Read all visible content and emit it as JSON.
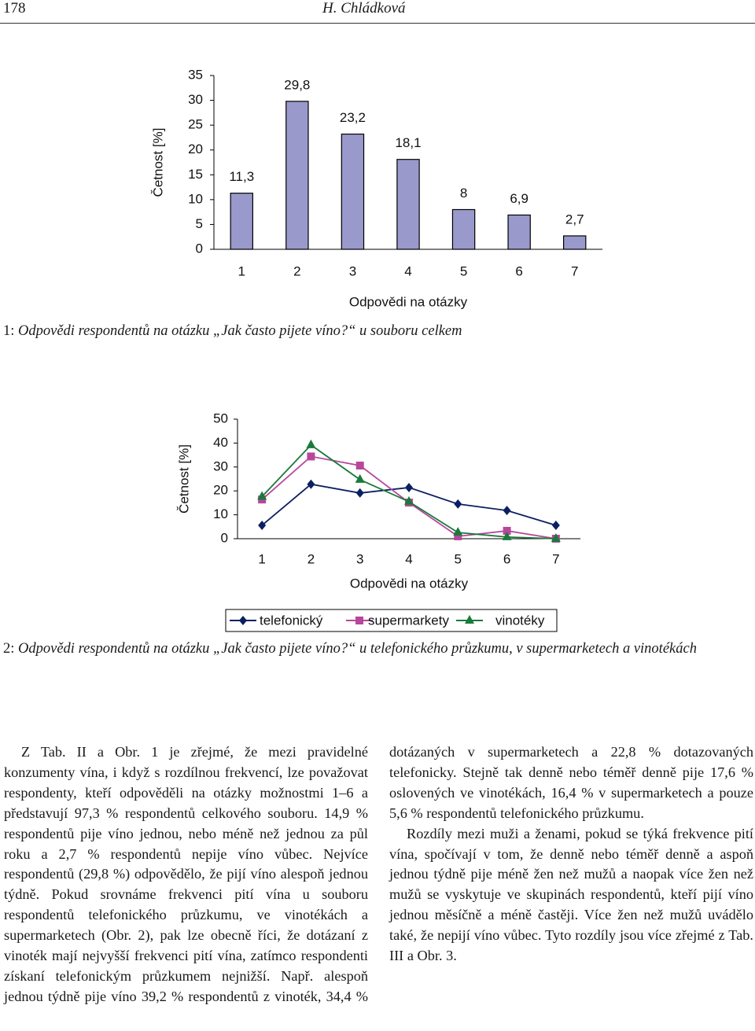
{
  "header": {
    "page_number": "178",
    "author": "H. Chládková"
  },
  "chart_data": [
    {
      "type": "bar",
      "x_label": "Odpovědi na otázky",
      "y_label": "Četnost [%]",
      "categories": [
        "1",
        "2",
        "3",
        "4",
        "5",
        "6",
        "7"
      ],
      "values": [
        11.3,
        29.8,
        23.2,
        18.1,
        8,
        6.9,
        2.7
      ],
      "value_labels": [
        "11,3",
        "29,8",
        "23,2",
        "18,1",
        "8",
        "6,9",
        "2,7"
      ],
      "color": "#9999cc",
      "ylim": [
        0,
        35
      ],
      "yticks": [
        0,
        5,
        10,
        15,
        20,
        25,
        30,
        35
      ],
      "grid": false
    },
    {
      "type": "line",
      "x_label": "Odpovědi na otázky",
      "y_label": "Četnost [%]",
      "categories": [
        "1",
        "2",
        "3",
        "4",
        "5",
        "6",
        "7"
      ],
      "series": [
        {
          "name": "telefonický",
          "color": "#0d1f63",
          "marker": "diamond",
          "values": [
            5.6,
            22.8,
            19.1,
            21.4,
            14.5,
            11.8,
            5.6
          ]
        },
        {
          "name": "supermarkety",
          "color": "#b8479c",
          "marker": "square",
          "values": [
            16.4,
            34.4,
            30.6,
            15.1,
            1.0,
            3.3,
            0
          ]
        },
        {
          "name": "vinotéky",
          "color": "#1a7a3a",
          "marker": "triangle",
          "values": [
            17.6,
            39.2,
            24.7,
            15.5,
            2.6,
            0.7,
            0
          ]
        }
      ],
      "ylim": [
        0,
        50
      ],
      "yticks": [
        0,
        10,
        20,
        30,
        40,
        50
      ],
      "grid": false,
      "legend": "bottom"
    }
  ],
  "captions": [
    {
      "number": "1:",
      "text": "Odpovědi respondentů na otázku „Jak často pijete víno?“ u souboru celkem"
    },
    {
      "number": "2:",
      "text": "Odpovědi respondentů na otázku „Jak často pijete víno?“ u telefonického průzkumu, v supermarketech a vinotékách"
    }
  ],
  "body": {
    "paragraphs": [
      "Z Tab. II a Obr. 1 je zřejmé, že mezi pravidelné konzumenty vína, i když s rozdílnou frekvencí, lze považovat respondenty, kteří odpověděli na otázky možnostmi 1–6 a představují 97,3 % respondentů celkového souboru. 14,9 % respondentů pije víno jednou, nebo méně než jednou za půl roku a 2,7 % respondentů nepije víno vůbec. Nejvíce respondentů (29,8 %) odpovědělo, že pijí víno alespoň jednou týdně. Pokud srovnáme frekvenci pití vína u souboru respondentů telefonického průzkumu, ve vinotékách a supermarketech (Obr. 2), pak lze obecně říci, že dotázaní z vinoték mají nejvyšší frekvenci pití vína, zatímco respondenti získaní telefonickým průzkumem nejnižší. Např. alespoň jednou týdně pije víno 39,2 % respondentů z vinoték, 34,4 % dotázaných v supermarketech a 22,8 % dotazovaných telefonicky. Stejně tak denně nebo téměř denně pije 17,6 % oslovených ve vinotékách, 16,4 % v supermarketech a pouze 5,6 % respondentů telefonického průzkumu.",
      "Rozdíly mezi muži a ženami, pokud se týká frekvence pití vína, spočívají v tom, že denně nebo téměř denně a aspoň jednou týdně pije méně žen než mužů a naopak více žen než mužů se vyskytuje ve skupinách respondentů, kteří pijí víno jednou měsíčně a méně častěji. Více žen než mužů uvádělo také, že nepijí víno vůbec. Tyto rozdíly jsou více zřejmé z Tab. III a Obr. 3."
    ]
  }
}
